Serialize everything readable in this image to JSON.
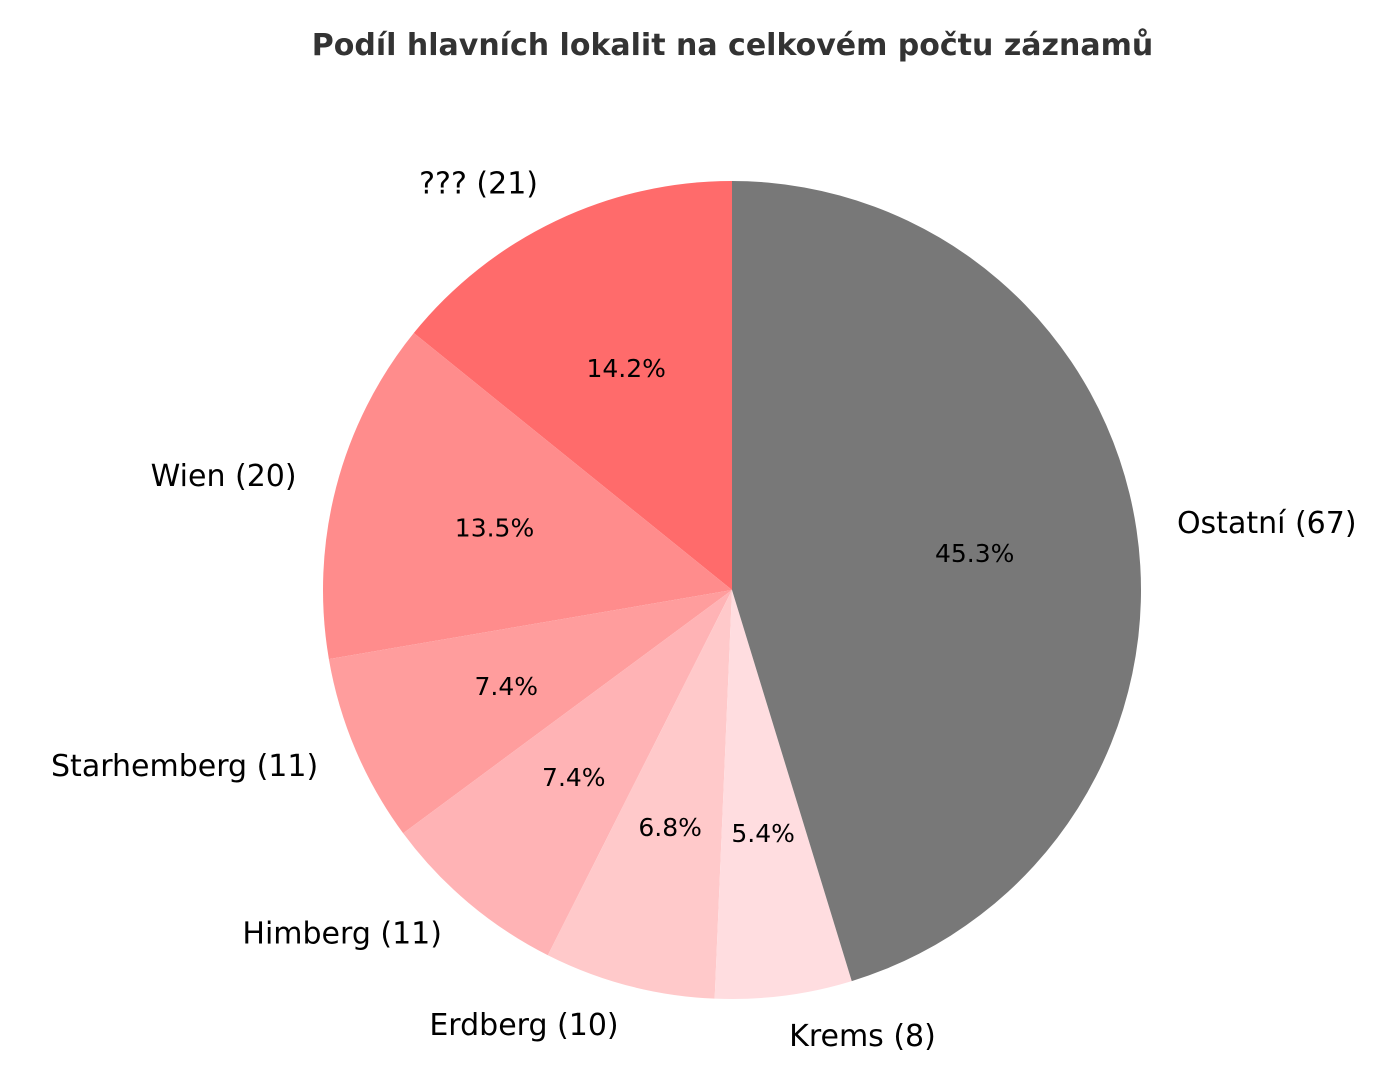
{
  "chart_data": {
    "type": "pie",
    "title": "Podíl hlavních lokalit na celkovém počtu záznamů",
    "slices": [
      {
        "label": "??? (21)",
        "value": 21,
        "percent_label": "14.2%",
        "color": "#ff6b6b"
      },
      {
        "label": "Wien (20)",
        "value": 20,
        "percent_label": "13.5%",
        "color": "#ff8c8c"
      },
      {
        "label": "Starhemberg (11)",
        "value": 11,
        "percent_label": "7.4%",
        "color": "#ff9d9d"
      },
      {
        "label": "Himberg (11)",
        "value": 11,
        "percent_label": "7.4%",
        "color": "#ffb3b5"
      },
      {
        "label": "Erdberg (10)",
        "value": 10,
        "percent_label": "6.8%",
        "color": "#ffc9ca"
      },
      {
        "label": "Krems (8)",
        "value": 8,
        "percent_label": "5.4%",
        "color": "#ffdde0"
      },
      {
        "label": "Ostatní (67)",
        "value": 67,
        "percent_label": "45.3%",
        "color": "#787878"
      }
    ],
    "start_angle": "top",
    "direction": "counterclockwise",
    "legend": "none"
  }
}
